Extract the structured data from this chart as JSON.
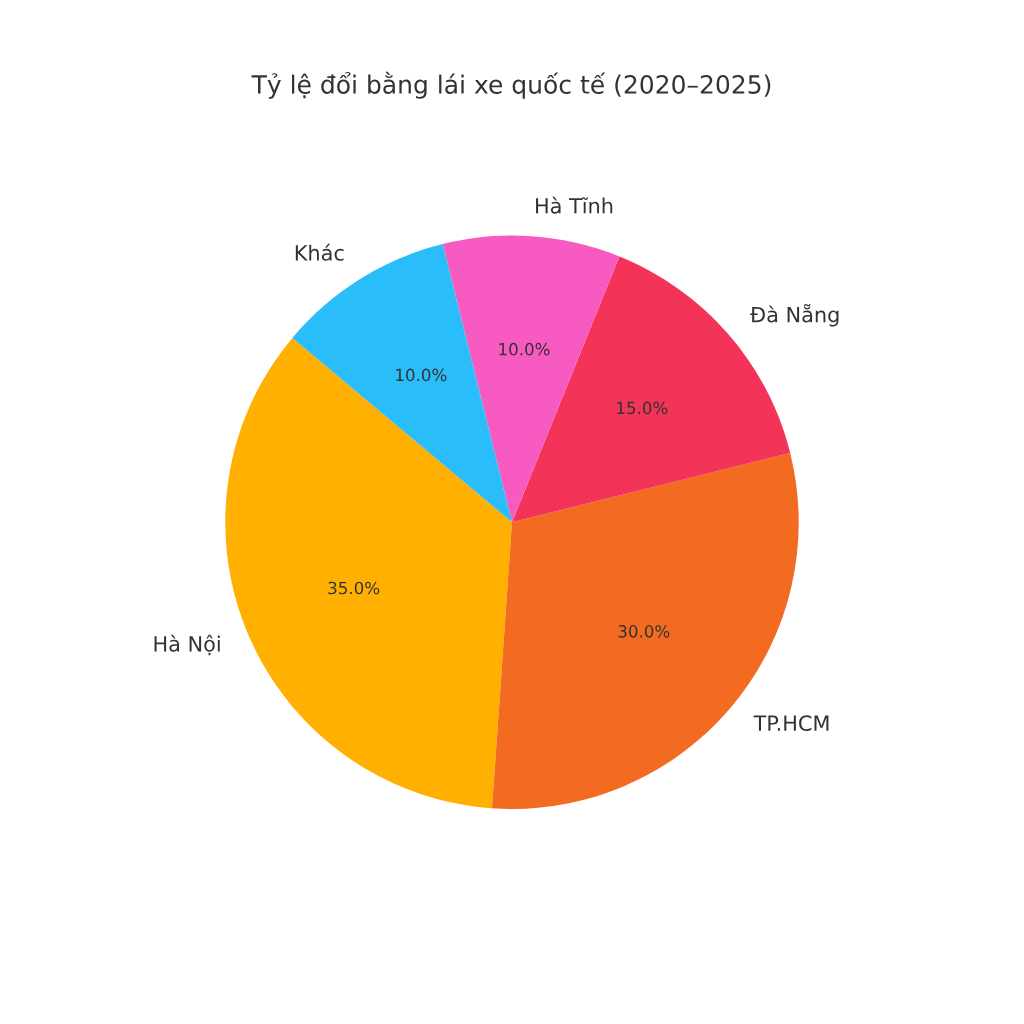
{
  "chart_data": {
    "type": "pie",
    "title": "Tỷ lệ đổi bằng lái xe quốc tế (2020–2025)",
    "categories": [
      "Hà Nội",
      "TP.HCM",
      "Đà Nẵng",
      "Hà Tĩnh",
      "Khác"
    ],
    "values": [
      35,
      30,
      15,
      10,
      10
    ],
    "value_labels": [
      "35.0%",
      "30.0%",
      "15.0%",
      "10.0%",
      "10.0%"
    ],
    "colors": [
      "#ffb000",
      "#f26b21",
      "#f43358",
      "#f75bc1",
      "#29bdfa"
    ]
  }
}
